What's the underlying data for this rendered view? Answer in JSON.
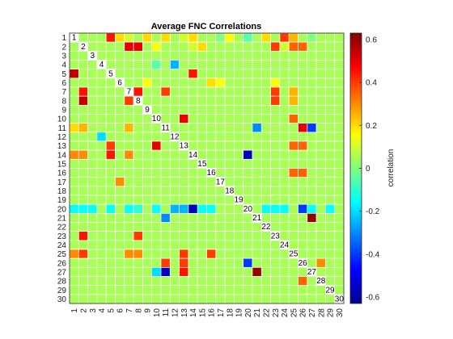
{
  "chart_data": {
    "type": "heatmap",
    "title": "Average FNC Correlations",
    "colorbar_label": "correlation",
    "clim": [
      -0.63,
      0.63
    ],
    "colorbar_ticks": [
      -0.6,
      -0.4,
      -0.2,
      0,
      0.2,
      0.4,
      0.6
    ],
    "colorbar_tick_labels": [
      "-0.6",
      "-0.4",
      "-0.2",
      "0",
      "0.2",
      "0.4",
      "0.6"
    ],
    "colormap": "jet",
    "grid": true,
    "grid_color": "#ffffff",
    "row_labels": [
      "1",
      "2",
      "3",
      "4",
      "5",
      "6",
      "7",
      "8",
      "9",
      "10",
      "11",
      "12",
      "13",
      "14",
      "15",
      "16",
      "17",
      "18",
      "19",
      "20",
      "21",
      "22",
      "23",
      "24",
      "25",
      "26",
      "27",
      "28",
      "29",
      "30"
    ],
    "col_labels": [
      "1",
      "2",
      "3",
      "4",
      "5",
      "6",
      "7",
      "8",
      "9",
      "10",
      "11",
      "12",
      "13",
      "14",
      "15",
      "16",
      "17",
      "18",
      "19",
      "20",
      "21",
      "22",
      "23",
      "24",
      "25",
      "26",
      "27",
      "28",
      "29",
      "30"
    ],
    "diagonal_labels": [
      "1",
      "2",
      "3",
      "4",
      "5",
      "6",
      "7",
      "8",
      "9",
      "10",
      "11",
      "12",
      "13",
      "14",
      "15",
      "16",
      "17",
      "18",
      "19",
      "20",
      "21",
      "22",
      "23",
      "24",
      "25",
      "26",
      "27",
      "28",
      "29",
      "30"
    ],
    "values": [
      [
        null,
        0.05,
        0.05,
        0.05,
        0.45,
        0.2,
        0.1,
        0.05,
        0.2,
        0.05,
        0.2,
        0.05,
        0.1,
        0.2,
        0.05,
        0.05,
        0.0,
        0.15,
        0.05,
        -0.05,
        0.05,
        0.2,
        0.05,
        0.4,
        0.25,
        0.05,
        0.0,
        0.05,
        0.05,
        0.05
      ],
      [
        0.05,
        null,
        0.05,
        0.05,
        0.05,
        0.05,
        0.5,
        0.5,
        0.05,
        0.15,
        0.05,
        0.05,
        0.05,
        0.1,
        0.2,
        0.05,
        0.05,
        0.05,
        0.05,
        0.05,
        0.05,
        0.05,
        0.4,
        0.1,
        0.35,
        0.35,
        0.05,
        0.05,
        0.05,
        0.05
      ],
      [
        0.05,
        0.05,
        null,
        0.05,
        0.05,
        0.05,
        0.05,
        0.05,
        0.05,
        0.05,
        0.05,
        0.05,
        0.05,
        0.05,
        0.05,
        0.05,
        0.05,
        0.05,
        0.05,
        0.05,
        0.05,
        0.05,
        0.05,
        0.05,
        0.05,
        0.05,
        0.05,
        0.05,
        0.05,
        0.05
      ],
      [
        0.05,
        0.05,
        0.05,
        null,
        0.05,
        0.05,
        0.05,
        0.05,
        0.05,
        -0.05,
        0.05,
        -0.25,
        0.05,
        0.05,
        0.05,
        0.05,
        0.05,
        0.05,
        0.05,
        0.05,
        0.05,
        0.05,
        0.05,
        0.05,
        0.05,
        0.05,
        0.05,
        0.05,
        0.05,
        0.05
      ],
      [
        0.55,
        0.05,
        0.05,
        0.05,
        null,
        0.05,
        0.05,
        0.05,
        0.05,
        0.05,
        0.05,
        0.05,
        0.05,
        0.45,
        0.05,
        0.05,
        0.05,
        0.05,
        0.05,
        0.05,
        0.05,
        0.05,
        0.05,
        0.05,
        0.05,
        0.05,
        0.05,
        0.05,
        0.05,
        0.05
      ],
      [
        0.05,
        0.05,
        0.05,
        0.05,
        0.05,
        null,
        0.05,
        0.05,
        0.15,
        0.05,
        0.05,
        0.05,
        0.05,
        0.05,
        0.05,
        0.2,
        0.15,
        0.05,
        0.05,
        0.05,
        0.05,
        0.05,
        0.15,
        0.05,
        0.05,
        0.05,
        0.05,
        0.05,
        0.05,
        0.05
      ],
      [
        0.05,
        0.45,
        0.05,
        0.05,
        0.05,
        0.05,
        null,
        0.45,
        0.05,
        0.05,
        0.4,
        0.05,
        0.05,
        0.05,
        0.05,
        0.05,
        0.05,
        0.05,
        0.05,
        0.05,
        0.05,
        0.05,
        0.4,
        0.05,
        0.25,
        0.05,
        0.05,
        0.05,
        0.05,
        0.05
      ],
      [
        0.05,
        0.55,
        0.05,
        0.05,
        0.05,
        0.05,
        0.4,
        null,
        0.05,
        0.05,
        0.05,
        0.05,
        0.05,
        0.05,
        0.05,
        0.05,
        0.05,
        0.05,
        0.05,
        0.05,
        0.05,
        0.05,
        0.4,
        0.05,
        0.25,
        0.05,
        0.05,
        0.05,
        0.05,
        0.05
      ],
      [
        0.05,
        0.05,
        0.05,
        0.05,
        0.05,
        0.05,
        0.05,
        0.05,
        null,
        0.05,
        0.05,
        0.05,
        0.05,
        0.05,
        0.05,
        0.05,
        0.05,
        0.05,
        0.05,
        0.05,
        0.05,
        0.05,
        0.05,
        0.05,
        0.05,
        0.05,
        0.05,
        0.05,
        0.05,
        0.05
      ],
      [
        0.05,
        0.05,
        0.05,
        0.05,
        0.05,
        0.05,
        0.05,
        0.05,
        0.05,
        null,
        0.05,
        0.05,
        0.5,
        0.05,
        0.05,
        0.05,
        0.05,
        0.05,
        0.05,
        0.05,
        0.05,
        0.05,
        0.05,
        0.05,
        0.35,
        0.05,
        0.05,
        0.05,
        0.05,
        0.05
      ],
      [
        0.2,
        0.25,
        0.05,
        0.05,
        0.05,
        0.05,
        0.25,
        0.05,
        0.05,
        0.05,
        null,
        0.05,
        0.05,
        0.05,
        0.05,
        0.05,
        0.05,
        0.05,
        0.05,
        0.05,
        -0.3,
        0.05,
        0.05,
        0.05,
        0.05,
        0.5,
        -0.4,
        0.05,
        0.05,
        0.05
      ],
      [
        0.05,
        0.05,
        0.05,
        -0.2,
        0.05,
        0.05,
        0.05,
        0.05,
        0.05,
        0.05,
        0.05,
        null,
        0.05,
        0.05,
        0.05,
        0.05,
        0.05,
        0.05,
        0.05,
        0.05,
        0.05,
        0.05,
        0.05,
        0.05,
        0.05,
        0.05,
        0.05,
        0.05,
        0.05,
        0.05
      ],
      [
        0.05,
        0.05,
        0.05,
        0.05,
        0.4,
        0.05,
        0.05,
        0.05,
        0.05,
        0.5,
        0.05,
        0.05,
        null,
        0.05,
        0.05,
        0.05,
        0.05,
        0.05,
        0.05,
        0.05,
        0.05,
        0.05,
        0.05,
        0.05,
        0.35,
        0.35,
        0.05,
        0.05,
        0.05,
        0.05
      ],
      [
        0.3,
        0.3,
        0.05,
        0.05,
        0.45,
        0.05,
        0.3,
        0.05,
        0.05,
        0.05,
        0.05,
        0.05,
        0.05,
        null,
        0.05,
        0.05,
        0.05,
        0.05,
        0.05,
        -0.55,
        0.05,
        0.05,
        0.05,
        0.05,
        0.05,
        0.05,
        0.05,
        0.05,
        0.05,
        0.05
      ],
      [
        0.05,
        0.05,
        0.05,
        0.05,
        0.05,
        0.05,
        0.05,
        0.05,
        0.05,
        0.05,
        0.05,
        0.05,
        0.05,
        0.05,
        null,
        0.05,
        0.05,
        0.05,
        0.05,
        0.05,
        0.05,
        0.05,
        0.05,
        0.05,
        0.05,
        0.05,
        0.05,
        0.05,
        0.05,
        0.05
      ],
      [
        0.05,
        0.05,
        0.05,
        0.05,
        0.05,
        0.05,
        0.05,
        0.05,
        0.05,
        0.05,
        0.05,
        0.05,
        0.05,
        0.05,
        0.05,
        null,
        0.05,
        0.05,
        0.05,
        0.05,
        0.05,
        0.05,
        0.05,
        0.05,
        0.35,
        0.35,
        0.05,
        0.05,
        0.05,
        0.05
      ],
      [
        0.05,
        0.05,
        0.05,
        0.05,
        0.05,
        0.3,
        0.05,
        0.05,
        0.05,
        0.05,
        0.05,
        0.05,
        0.05,
        0.05,
        0.05,
        0.05,
        null,
        0.05,
        0.05,
        0.05,
        0.05,
        0.05,
        0.05,
        0.05,
        0.05,
        0.05,
        0.05,
        0.05,
        0.05,
        0.05
      ],
      [
        0.05,
        0.05,
        0.05,
        0.05,
        0.05,
        0.05,
        0.05,
        0.05,
        0.05,
        0.05,
        0.05,
        0.05,
        0.05,
        0.05,
        0.05,
        0.05,
        0.05,
        null,
        0.05,
        0.05,
        0.05,
        0.05,
        0.05,
        0.05,
        0.05,
        0.05,
        0.05,
        0.05,
        0.05,
        0.05
      ],
      [
        0.05,
        0.05,
        0.05,
        0.05,
        0.05,
        0.05,
        0.05,
        0.05,
        0.05,
        0.05,
        0.05,
        0.05,
        0.05,
        0.05,
        0.05,
        0.05,
        0.05,
        0.05,
        null,
        0.05,
        0.05,
        0.05,
        0.05,
        0.05,
        0.05,
        0.05,
        0.05,
        0.05,
        0.05,
        0.05
      ],
      [
        -0.15,
        -0.15,
        -0.15,
        0.05,
        -0.15,
        0.05,
        -0.15,
        -0.1,
        0.05,
        -0.15,
        0.05,
        -0.25,
        -0.25,
        -0.55,
        -0.15,
        -0.15,
        0.05,
        0.05,
        0.05,
        null,
        0.05,
        -0.15,
        -0.15,
        -0.15,
        0.05,
        -0.4,
        -0.15,
        0.05,
        -0.15,
        0.05
      ],
      [
        0.05,
        0.05,
        0.05,
        0.05,
        0.05,
        0.05,
        0.05,
        0.05,
        0.05,
        0.05,
        -0.3,
        0.05,
        0.05,
        0.05,
        0.05,
        0.05,
        0.05,
        0.05,
        0.05,
        0.05,
        null,
        0.05,
        0.05,
        0.05,
        0.05,
        0.05,
        0.6,
        0.05,
        0.05,
        0.05
      ],
      [
        0.05,
        0.05,
        0.05,
        0.05,
        0.05,
        0.05,
        0.05,
        0.05,
        0.05,
        0.05,
        0.05,
        0.05,
        0.05,
        0.05,
        0.05,
        0.05,
        0.05,
        0.05,
        0.05,
        0.05,
        0.05,
        null,
        0.05,
        0.05,
        0.05,
        0.05,
        0.05,
        0.05,
        0.05,
        0.05
      ],
      [
        0.05,
        0.45,
        0.05,
        0.05,
        0.05,
        0.05,
        0.05,
        0.4,
        0.05,
        0.05,
        0.05,
        0.05,
        0.05,
        0.05,
        0.05,
        0.05,
        0.05,
        0.05,
        0.05,
        0.05,
        0.05,
        0.05,
        null,
        0.05,
        0.05,
        0.05,
        0.05,
        0.05,
        0.05,
        0.05
      ],
      [
        0.05,
        0.05,
        0.05,
        0.05,
        0.05,
        0.05,
        0.05,
        0.05,
        0.05,
        0.05,
        0.05,
        0.05,
        0.05,
        0.05,
        0.05,
        0.05,
        0.05,
        0.05,
        0.05,
        0.05,
        0.05,
        0.05,
        0.05,
        null,
        0.05,
        0.05,
        0.05,
        0.05,
        0.05,
        0.05
      ],
      [
        0.3,
        0.4,
        0.05,
        0.05,
        0.05,
        0.05,
        0.3,
        0.3,
        0.05,
        0.05,
        0.05,
        0.05,
        0.4,
        0.05,
        0.05,
        0.4,
        0.05,
        0.05,
        0.05,
        0.05,
        0.05,
        0.05,
        0.05,
        0.05,
        null,
        0.05,
        0.05,
        0.05,
        0.05,
        0.05
      ],
      [
        0.05,
        0.05,
        0.05,
        0.05,
        0.05,
        0.05,
        0.05,
        0.05,
        0.05,
        0.05,
        0.4,
        0.05,
        0.4,
        0.05,
        0.05,
        0.05,
        0.05,
        0.05,
        0.05,
        -0.4,
        0.05,
        0.05,
        0.05,
        0.05,
        0.05,
        null,
        0.05,
        0.3,
        0.05,
        0.05
      ],
      [
        0.05,
        0.05,
        0.05,
        0.05,
        0.05,
        0.05,
        0.05,
        0.05,
        0.05,
        -0.2,
        -0.55,
        0.05,
        0.45,
        0.05,
        0.05,
        0.05,
        0.05,
        0.05,
        0.05,
        0.05,
        0.6,
        0.05,
        0.05,
        0.05,
        0.05,
        0.05,
        null,
        0.05,
        0.05,
        0.05
      ],
      [
        0.05,
        0.05,
        0.05,
        0.05,
        0.05,
        0.05,
        0.05,
        0.05,
        0.05,
        0.05,
        0.05,
        0.05,
        0.05,
        0.05,
        0.05,
        0.05,
        0.05,
        0.05,
        0.05,
        0.05,
        0.05,
        0.05,
        0.05,
        0.05,
        0.05,
        0.35,
        0.05,
        null,
        0.05,
        0.05
      ],
      [
        0.05,
        0.05,
        0.05,
        0.05,
        0.05,
        0.05,
        0.05,
        0.05,
        0.05,
        0.05,
        0.05,
        0.05,
        0.05,
        0.05,
        0.05,
        0.05,
        0.05,
        0.05,
        0.05,
        0.05,
        0.05,
        0.05,
        0.05,
        0.05,
        0.05,
        0.05,
        0.05,
        0.05,
        null,
        0.05
      ],
      [
        0.05,
        0.05,
        0.05,
        0.05,
        0.05,
        0.05,
        0.05,
        0.05,
        0.05,
        0.05,
        0.05,
        0.05,
        0.05,
        0.05,
        0.05,
        0.05,
        0.05,
        0.05,
        0.05,
        0.05,
        0.05,
        0.05,
        0.05,
        0.05,
        0.05,
        0.05,
        0.05,
        0.05,
        0.05,
        null
      ]
    ]
  }
}
